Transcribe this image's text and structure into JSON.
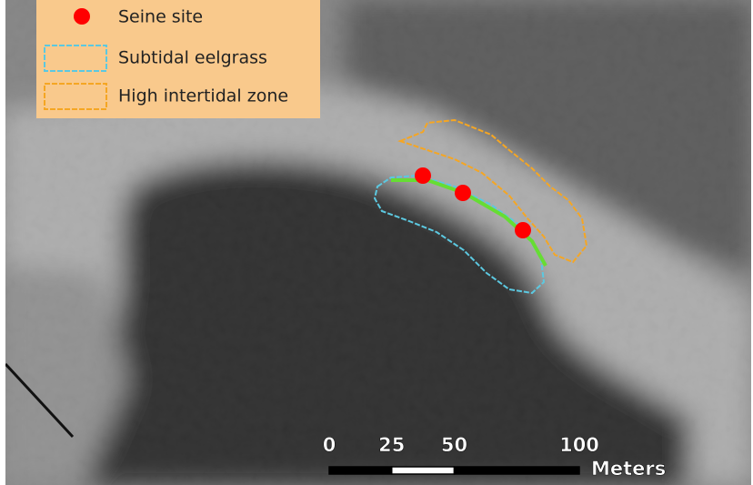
{
  "legend": {
    "items": [
      {
        "label": "Seine site"
      },
      {
        "label": "Subtidal eelgrass"
      },
      {
        "label": "High intertidal zone"
      }
    ]
  },
  "scale_bar": {
    "ticks": [
      0,
      25,
      50,
      100
    ],
    "unit": "Meters"
  }
}
